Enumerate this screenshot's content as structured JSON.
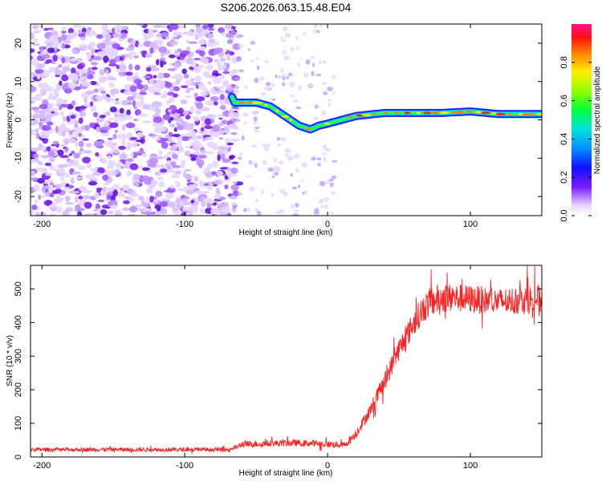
{
  "figure_title": "S206.2026.063.15.48.E04",
  "chart_data": [
    {
      "type": "heatmap",
      "xlabel": "Height of straight line (km)",
      "ylabel": "Frequency (Hz)",
      "xlim": [
        -208,
        150
      ],
      "ylim": [
        -25,
        25
      ],
      "xticks": [
        -200,
        -100,
        0,
        100
      ],
      "yticks": [
        -20,
        -10,
        0,
        10,
        20
      ],
      "noise_region_x": [
        -208,
        -62
      ],
      "sparse_noise_x": [
        -62,
        5
      ],
      "ridge": {
        "x": [
          -67,
          -65,
          -60,
          -50,
          -40,
          -30,
          -20,
          -12,
          -6,
          0,
          5,
          10,
          20,
          40,
          60,
          80,
          100,
          120,
          150
        ],
        "freq": [
          6,
          4.5,
          4.5,
          4.5,
          3.5,
          1,
          -1.5,
          -2.5,
          -1.5,
          -1,
          -0.5,
          0,
          1,
          1.8,
          1.8,
          1.8,
          2.2,
          1.5,
          1.5
        ]
      },
      "colorbar": {
        "label": "Normalized spectral amplitude",
        "range": [
          0,
          1
        ],
        "ticks": [
          "0.0",
          "0.2",
          "0.4",
          "0.6",
          "0.8"
        ],
        "tick_values": [
          0,
          0.2,
          0.4,
          0.6,
          0.8
        ]
      }
    },
    {
      "type": "line",
      "xlabel": "Height of straight line (km)",
      "ylabel": "SNR (10 * v/v)",
      "xlim": [
        -208,
        150
      ],
      "ylim": [
        0,
        570
      ],
      "xticks": [
        -200,
        -100,
        0,
        100
      ],
      "yticks": [
        0,
        100,
        200,
        300,
        400,
        500
      ],
      "line_color": "#ff2020",
      "series": [
        {
          "name": "SNR",
          "x": [
            -208,
            -180,
            -140,
            -100,
            -70,
            -63,
            -60,
            -40,
            -20,
            0,
            12,
            20,
            30,
            40,
            50,
            60,
            65,
            70,
            80,
            100,
            120,
            150
          ],
          "y": [
            22,
            22,
            22,
            22,
            22,
            30,
            38,
            40,
            42,
            38,
            35,
            70,
            140,
            225,
            320,
            395,
            430,
            455,
            475,
            470,
            462,
            470
          ],
          "noise_amplitude": [
            6,
            6,
            6,
            6,
            6,
            8,
            10,
            10,
            10,
            10,
            10,
            14,
            20,
            28,
            34,
            38,
            42,
            45,
            45,
            42,
            40,
            45
          ]
        }
      ]
    }
  ]
}
